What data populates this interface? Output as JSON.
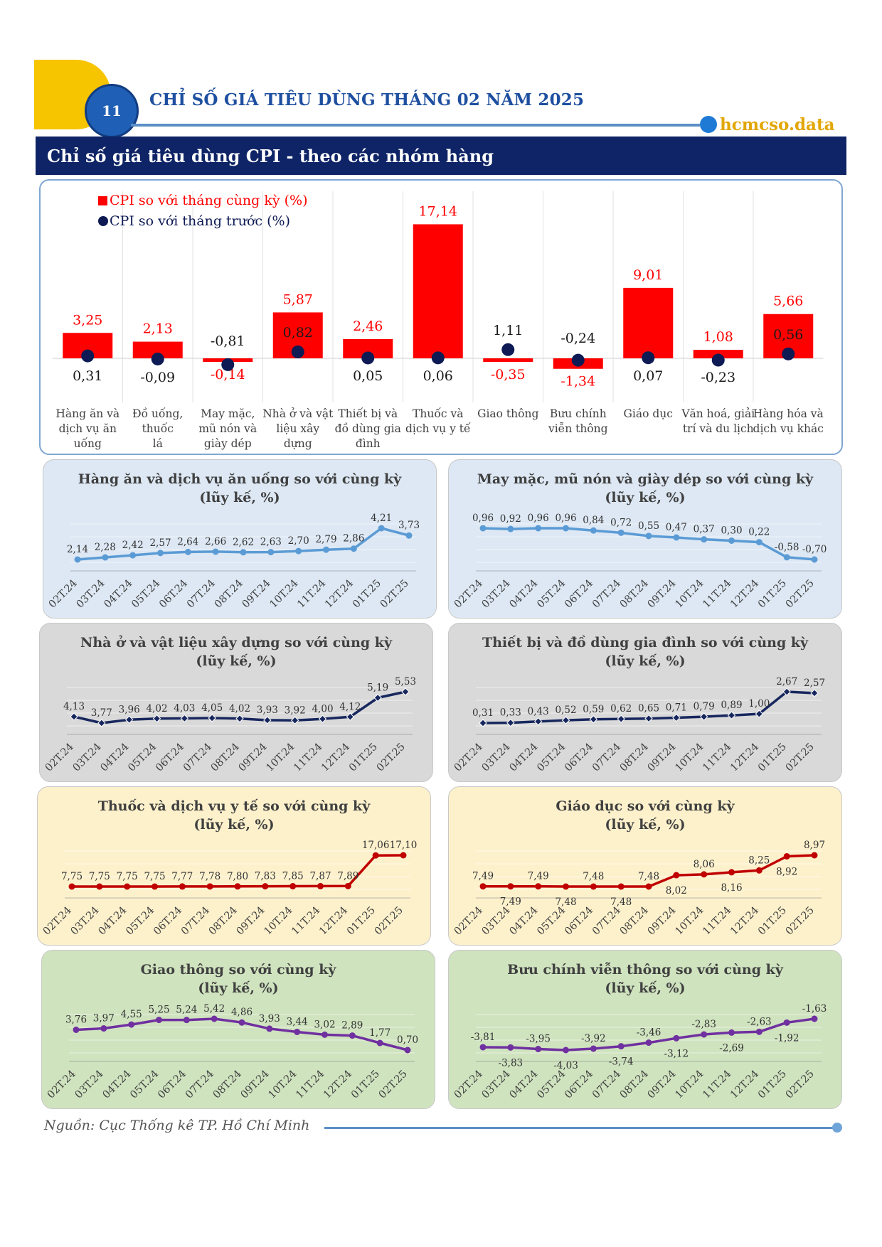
{
  "header": {
    "page_number": "11",
    "title": "CHỈ SỐ GIÁ TIÊU DÙNG THÁNG 02 NĂM 2025",
    "brand": "hcmcso.data"
  },
  "section": {
    "title": "Chỉ số giá tiêu dùng CPI - theo các nhóm hàng"
  },
  "footer": {
    "source": "Nguồn: Cục Thống kê TP. Hồ Chí Minh"
  },
  "colors": {
    "bar_red": "#ff0000",
    "dot_navy": "#0d1a54",
    "panel_blue": "#dde8f4",
    "panel_gray": "#d9d9d9",
    "panel_yellow": "#fdf1cc",
    "panel_green": "#cfe3bf"
  },
  "chart_data": [
    {
      "type": "bar",
      "legend": [
        "CPI so với tháng cùng kỳ (%)",
        "CPI so với tháng trước (%)"
      ],
      "categories": [
        "Hàng ăn và dịch vụ ăn uống",
        "Đồ uống, thuốc lá",
        "May mặc, mũ nón và giày dép",
        "Nhà ở và vật liệu xây dựng",
        "Thiết bị và đồ dùng gia đình",
        "Thuốc và dịch vụ y tế",
        "Giao thông",
        "Bưu chính viễn thông",
        "Giáo dục",
        "Văn hoá, giải trí và du lịch",
        "Hàng hóa và dịch vụ khác"
      ],
      "category_lines": [
        [
          "Hàng ăn và",
          "dịch vụ ăn",
          "uống"
        ],
        [
          "Đồ uống,",
          "thuốc",
          "lá"
        ],
        [
          "May mặc,",
          "mũ nón và",
          "giày dép"
        ],
        [
          "Nhà ở và vật",
          "liệu xây",
          "dựng"
        ],
        [
          "Thiết bị và",
          "đồ dùng gia",
          "đình"
        ],
        [
          "Thuốc và",
          "dịch vụ y tế"
        ],
        [
          "Giao thông"
        ],
        [
          "Bưu chính",
          "viễn thông"
        ],
        [
          "Giáo dục"
        ],
        [
          "Văn hoá, giải",
          "trí và du lịch"
        ],
        [
          "Hàng hóa và",
          "dịch vụ khác"
        ]
      ],
      "series": [
        {
          "name": "CPI so với tháng cùng kỳ (%)",
          "values": [
            3.25,
            2.13,
            -0.14,
            5.87,
            2.46,
            17.14,
            -0.35,
            -1.34,
            9.01,
            1.08,
            5.66
          ],
          "labels": [
            "3,25",
            "2,13",
            "-0,14",
            "5,87",
            "2,46",
            "17,14",
            "-0,35",
            "-1,34",
            "9,01",
            "1,08",
            "5,66"
          ]
        },
        {
          "name": "CPI so với tháng trước (%)",
          "values": [
            0.31,
            -0.09,
            -0.81,
            0.82,
            0.05,
            0.06,
            1.11,
            -0.24,
            0.07,
            -0.23,
            0.56
          ],
          "labels": [
            "0,31",
            "-0,09",
            "-0,81",
            "0,82",
            "0,05",
            "0,06",
            "1,11",
            "-0,24",
            "0,07",
            "-0,23",
            "0,56"
          ]
        }
      ]
    },
    {
      "type": "line",
      "title": [
        "Hàng ăn và dịch vụ ăn uống so với cùng kỳ",
        "(lũy kế, %)"
      ],
      "x": [
        "02T.24",
        "03T.24",
        "04T.24",
        "05T.24",
        "06T.24",
        "07T.24",
        "08T.24",
        "09T.24",
        "10T.24",
        "11T.24",
        "12T.24",
        "01T.25",
        "02T.25"
      ],
      "values": [
        2.14,
        2.28,
        2.42,
        2.57,
        2.64,
        2.66,
        2.62,
        2.63,
        2.7,
        2.79,
        2.86,
        4.21,
        3.73
      ],
      "labels": [
        "2,14",
        "2,28",
        "2,42",
        "2,57",
        "2,64",
        "2,66",
        "2,62",
        "2,63",
        "2,70",
        "2,79",
        "2,86",
        "4,21",
        "3,73"
      ]
    },
    {
      "type": "line",
      "title": [
        "May mặc, mũ nón và giày dép so với cùng kỳ",
        "(lũy kế, %)"
      ],
      "x": [
        "02T.24",
        "03T.24",
        "04T.24",
        "05T.24",
        "06T.24",
        "07T.24",
        "08T.24",
        "09T.24",
        "10T.24",
        "11T.24",
        "12T.24",
        "01T.25",
        "02T.25"
      ],
      "values": [
        0.96,
        0.92,
        0.96,
        0.96,
        0.84,
        0.72,
        0.55,
        0.47,
        0.37,
        0.3,
        0.22,
        -0.58,
        -0.7
      ],
      "labels": [
        "0,96",
        "0,92",
        "0,96",
        "0,96",
        "0,84",
        "0,72",
        "0,55",
        "0,47",
        "0,37",
        "0,30",
        "0,22",
        "-0,58",
        "-0,70"
      ]
    },
    {
      "type": "line",
      "title": [
        "Nhà ở và vật liệu xây dựng so với cùng kỳ",
        "(lũy kế, %)"
      ],
      "x": [
        "02T.24",
        "03T.24",
        "04T.24",
        "05T.24",
        "06T.24",
        "07T.24",
        "08T.24",
        "09T.24",
        "10T.24",
        "11T.24",
        "12T.24",
        "01T.25",
        "02T.25"
      ],
      "values": [
        4.13,
        3.77,
        3.96,
        4.02,
        4.03,
        4.05,
        4.02,
        3.93,
        3.92,
        4.0,
        4.12,
        5.19,
        5.53
      ],
      "labels": [
        "4,13",
        "3,77",
        "3,96",
        "4,02",
        "4,03",
        "4,05",
        "4,02",
        "3,93",
        "3,92",
        "4,00",
        "4,12",
        "5,19",
        "5,53"
      ]
    },
    {
      "type": "line",
      "title": [
        "Thiết bị và đồ dùng gia đình so với cùng kỳ",
        "(lũy kế, %)"
      ],
      "x": [
        "02T.24",
        "03T.24",
        "04T.24",
        "05T.24",
        "06T.24",
        "07T.24",
        "08T.24",
        "09T.24",
        "10T.24",
        "11T.24",
        "12T.24",
        "01T.25",
        "02T.25"
      ],
      "values": [
        0.31,
        0.33,
        0.43,
        0.52,
        0.59,
        0.62,
        0.65,
        0.71,
        0.79,
        0.89,
        1.0,
        2.67,
        2.57
      ],
      "labels": [
        "0,31",
        "0,33",
        "0,43",
        "0,52",
        "0,59",
        "0,62",
        "0,65",
        "0,71",
        "0,79",
        "0,89",
        "1,00",
        "2,67",
        "2,57"
      ]
    },
    {
      "type": "line",
      "title": [
        "Thuốc và dịch vụ y tế so với cùng kỳ",
        "(lũy kế, %)"
      ],
      "x": [
        "02T.24",
        "03T.24",
        "04T.24",
        "05T.24",
        "06T.24",
        "07T.24",
        "08T.24",
        "09T.24",
        "10T.24",
        "11T.24",
        "12T.24",
        "01T.25",
        "02T.25"
      ],
      "values": [
        7.75,
        7.75,
        7.75,
        7.75,
        7.77,
        7.78,
        7.8,
        7.83,
        7.85,
        7.87,
        7.89,
        17.06,
        17.1
      ],
      "labels": [
        "7,75",
        "7,75",
        "7,75",
        "7,75",
        "7,77",
        "7,78",
        "7,80",
        "7,83",
        "7,85",
        "7,87",
        "7,89",
        "17,06",
        "17,10"
      ]
    },
    {
      "type": "line",
      "title": [
        "Giáo dục so với cùng kỳ",
        "(lũy kế, %)"
      ],
      "x": [
        "02T.24",
        "03T.24",
        "04T.24",
        "05T.24",
        "06T.24",
        "07T.24",
        "08T.24",
        "09T.24",
        "10T.24",
        "11T.24",
        "12T.24",
        "01T.25",
        "02T.25"
      ],
      "values": [
        7.49,
        7.49,
        7.49,
        7.48,
        7.48,
        7.48,
        7.48,
        8.02,
        8.06,
        8.16,
        8.25,
        8.92,
        8.97
      ],
      "labels": [
        "7,49",
        "7,49",
        "7,49",
        "7,48",
        "7,48",
        "7,48",
        "7,48",
        "8,02",
        "8,06",
        "8,16",
        "8,25",
        "8,92",
        "8,97"
      ]
    },
    {
      "type": "line",
      "title": [
        "Giao thông so với cùng kỳ",
        "(lũy kế, %)"
      ],
      "x": [
        "02T.24",
        "03T.24",
        "04T.24",
        "05T.24",
        "06T.24",
        "07T.24",
        "08T.24",
        "09T.24",
        "10T.24",
        "11T.24",
        "12T.24",
        "01T.25",
        "02T.25"
      ],
      "values": [
        3.76,
        3.97,
        4.55,
        5.25,
        5.24,
        5.42,
        4.86,
        3.93,
        3.44,
        3.02,
        2.89,
        1.77,
        0.7
      ],
      "labels": [
        "3,76",
        "3,97",
        "4,55",
        "5,25",
        "5,24",
        "5,42",
        "4,86",
        "3,93",
        "3,44",
        "3,02",
        "2,89",
        "1,77",
        "0,70"
      ]
    },
    {
      "type": "line",
      "title": [
        "Bưu chính viễn thông so với cùng kỳ",
        "(lũy kế, %)"
      ],
      "x": [
        "02T.24",
        "03T.24",
        "04T.24",
        "05T.24",
        "06T.24",
        "07T.24",
        "08T.24",
        "09T.24",
        "10T.24",
        "11T.24",
        "12T.24",
        "01T.25",
        "02T.25"
      ],
      "values": [
        -3.81,
        -3.83,
        -3.95,
        -4.03,
        -3.92,
        -3.74,
        -3.46,
        -3.12,
        -2.83,
        -2.69,
        -2.63,
        -1.92,
        -1.63
      ],
      "labels": [
        "-3,81",
        "-3,83",
        "-3,95",
        "-4,03",
        "-3,92",
        "-3,74",
        "-3,46",
        "-3,12",
        "-2,83",
        "-2,69",
        "-2,63",
        "-1,92",
        "-1,63"
      ]
    }
  ]
}
